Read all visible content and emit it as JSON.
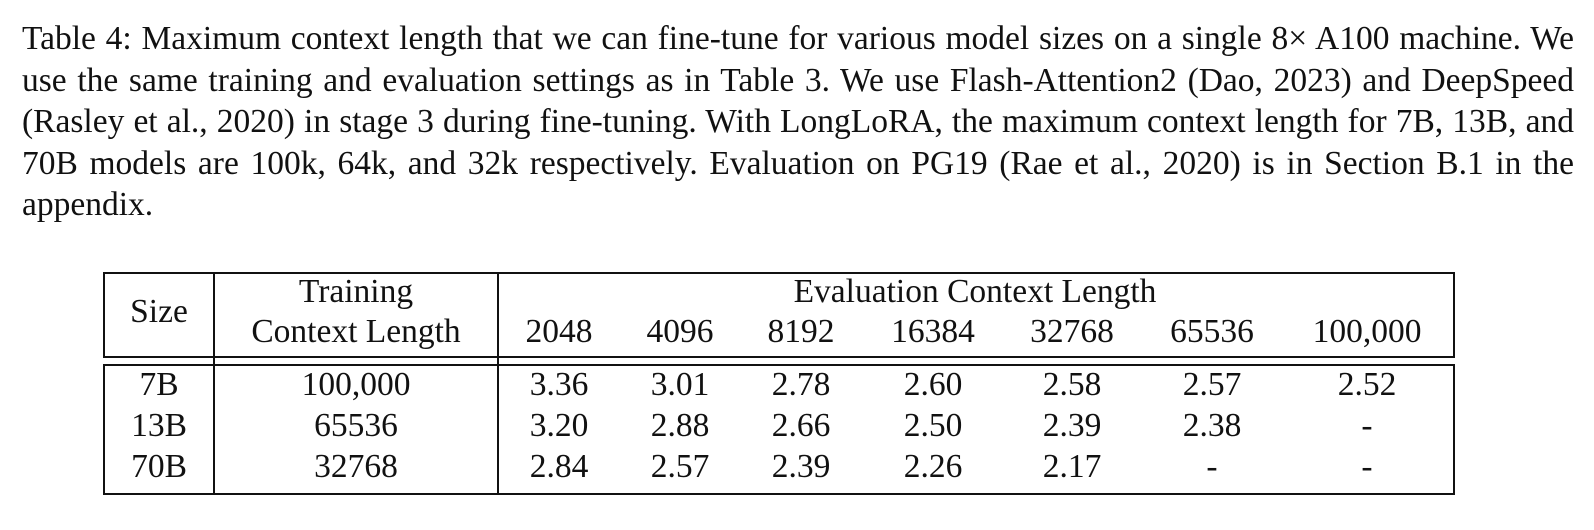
{
  "caption": "Table 4: Maximum context length that we can fine-tune for various model sizes on a single 8× A100 machine.  We use the same training and evaluation settings as in Table 3.  We use Flash-Attention2 (Dao, 2023) and DeepSpeed (Rasley et al., 2020) in stage 3 during fine-tuning.  With LongLoRA, the maximum context length for 7B, 13B, and 70B models are 100k, 64k, and 32k respectively. Evaluation on PG19 (Rae et al., 2020) is in Section B.1 in the appendix.",
  "table": {
    "header": {
      "size": "Size",
      "training_line1": "Training",
      "training_line2": "Context Length",
      "evaluation": "Evaluation Context Length",
      "eval_lengths": [
        "2048",
        "4096",
        "8192",
        "16384",
        "32768",
        "65536",
        "100,000"
      ]
    },
    "rows": [
      {
        "size": "7B",
        "training": "100,000",
        "values": [
          "3.36",
          "3.01",
          "2.78",
          "2.60",
          "2.58",
          "2.57",
          "2.52"
        ]
      },
      {
        "size": "13B",
        "training": "65536",
        "values": [
          "3.20",
          "2.88",
          "2.66",
          "2.50",
          "2.39",
          "2.38",
          "-"
        ]
      },
      {
        "size": "70B",
        "training": "32768",
        "values": [
          "2.84",
          "2.57",
          "2.39",
          "2.26",
          "2.17",
          "-",
          "-"
        ]
      }
    ]
  }
}
